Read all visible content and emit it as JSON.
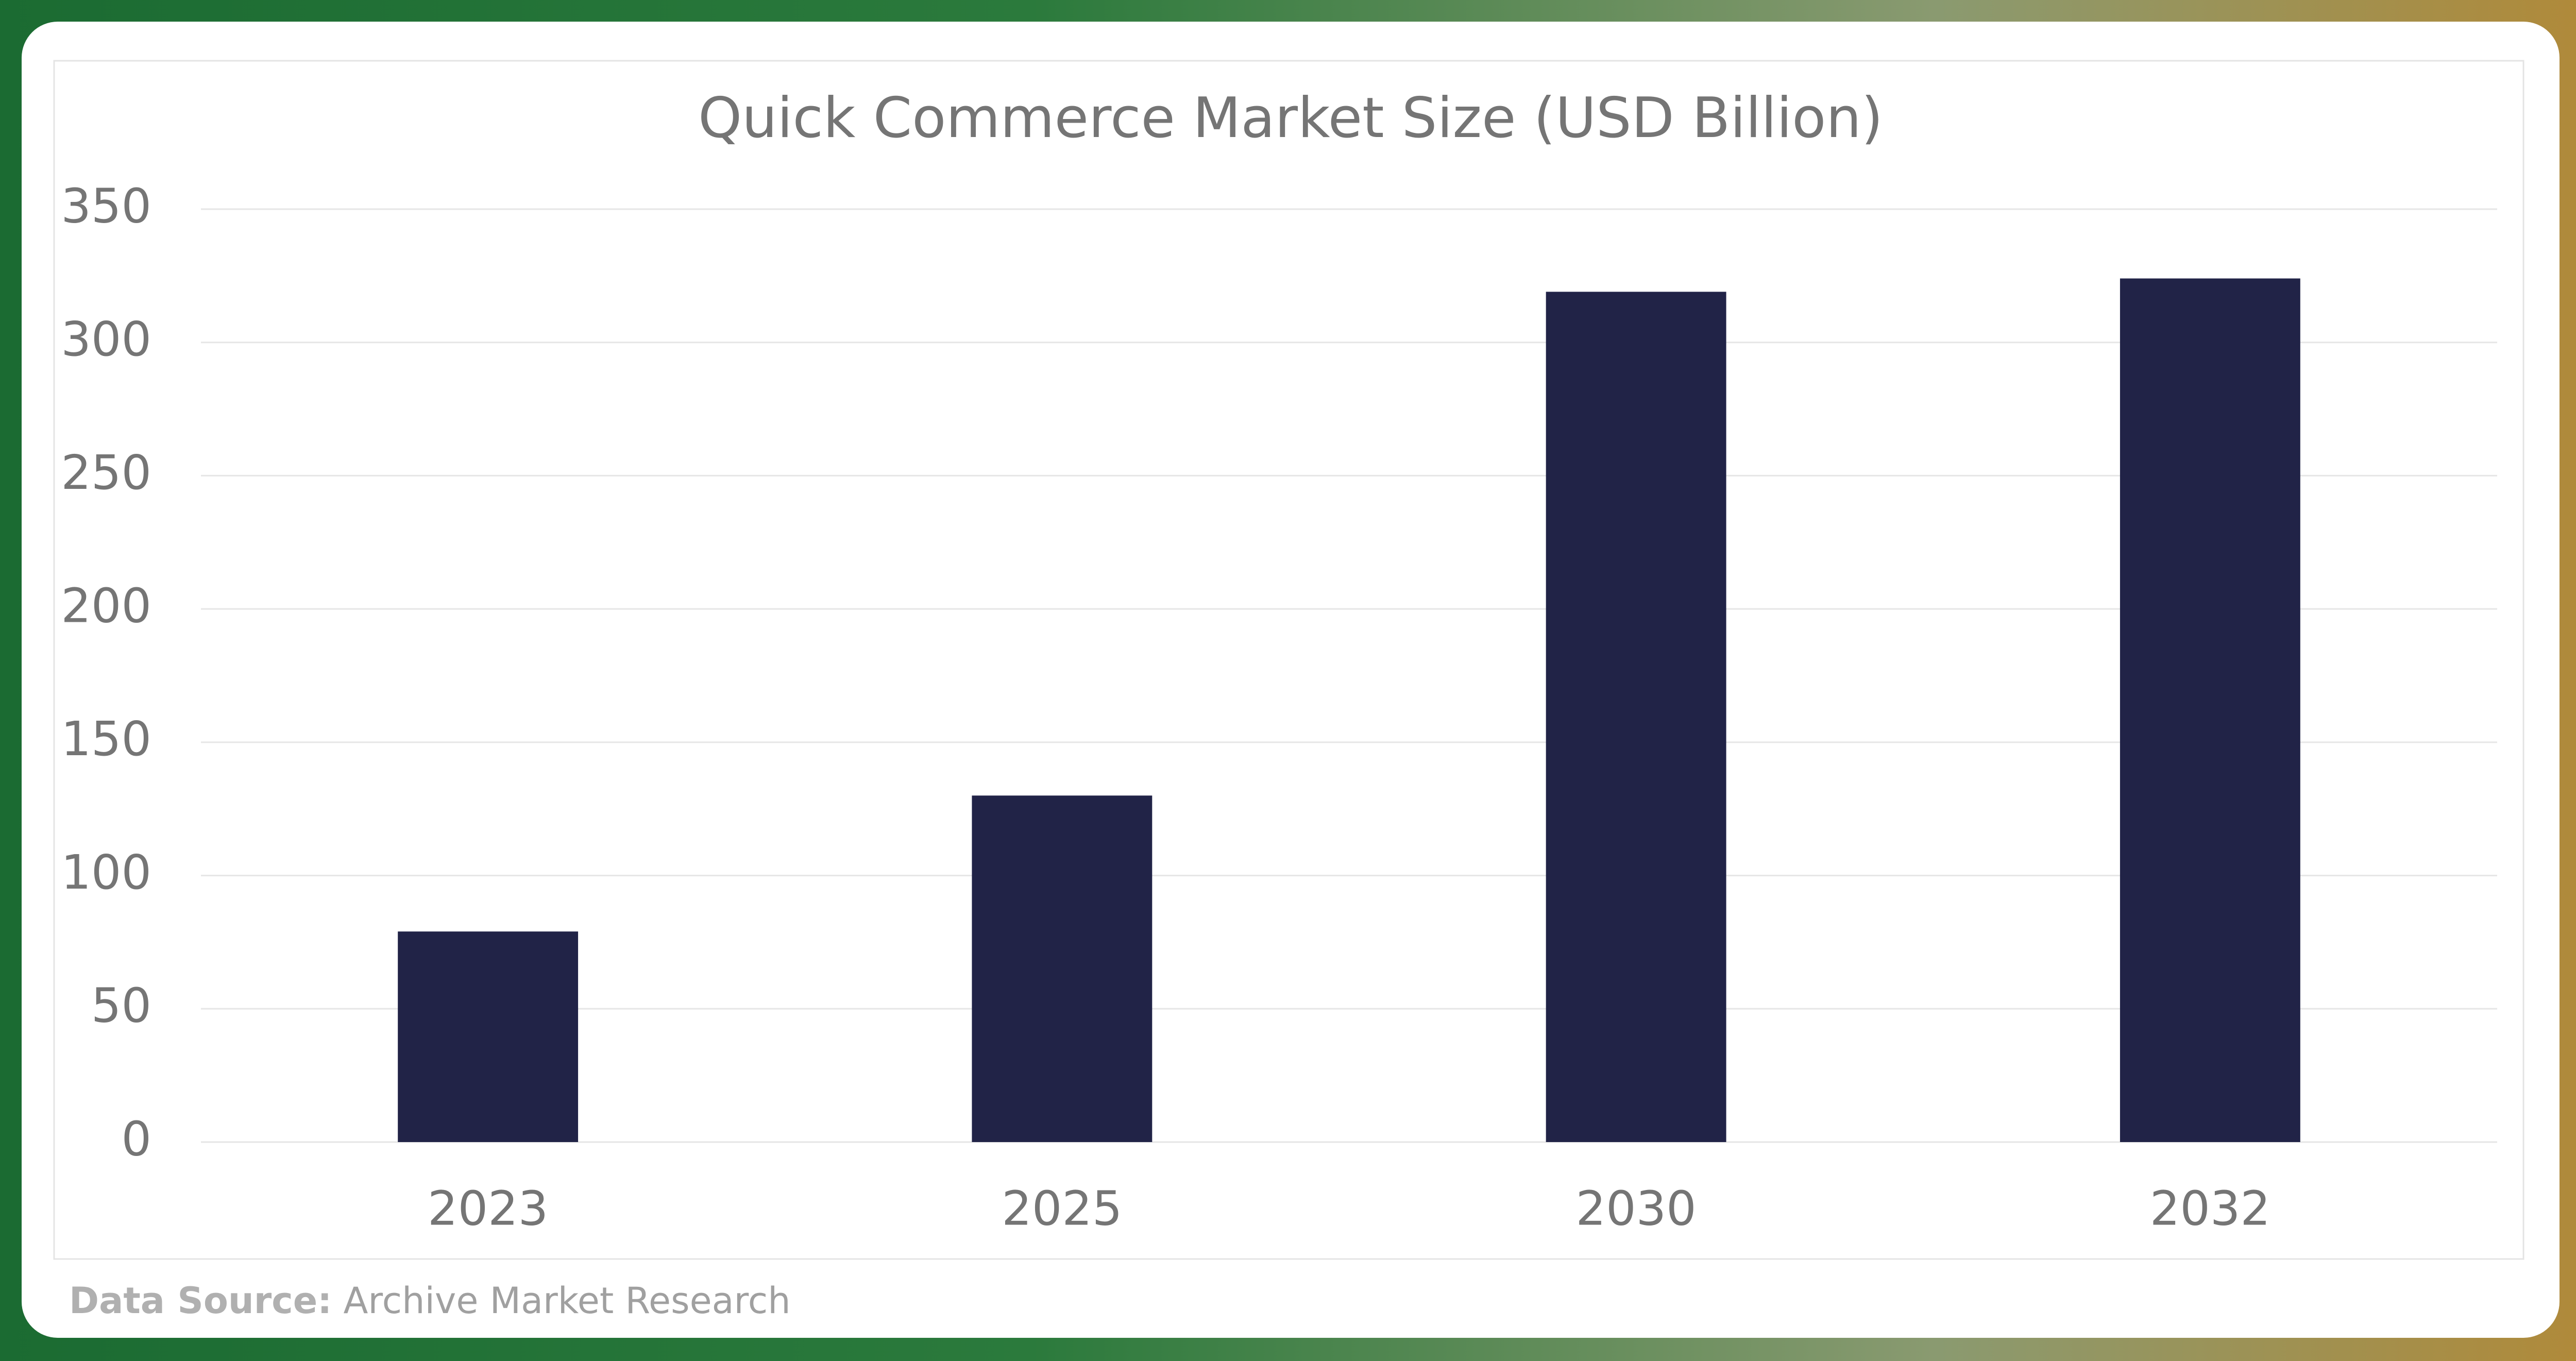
{
  "chart_data": {
    "type": "bar",
    "title": "Quick Commerce Market Size (USD Billion)",
    "categories": [
      "2023",
      "2025",
      "2030",
      "2032"
    ],
    "values": [
      79,
      130,
      319,
      324
    ],
    "color": "#212347",
    "ylim": [
      0,
      350
    ],
    "yticks": [
      0,
      50,
      100,
      150,
      200,
      250,
      300,
      350
    ],
    "grid": true
  },
  "source_label": "Data Source:",
  "source": "Archive Market Research"
}
